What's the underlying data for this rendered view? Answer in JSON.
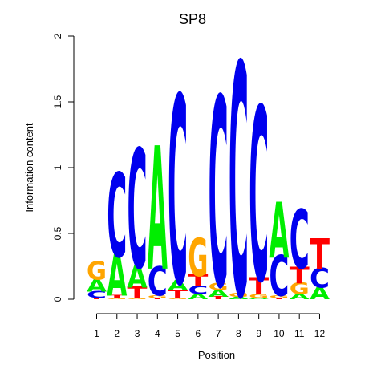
{
  "chart_data": {
    "type": "sequence-logo",
    "title": "SP8",
    "xlabel": "Position",
    "ylabel": "Information content",
    "ylim": [
      0,
      2
    ],
    "yticks": [
      "0",
      "0.5",
      "1",
      "1.5",
      "2"
    ],
    "xticks": [
      "1",
      "2",
      "3",
      "4",
      "5",
      "6",
      "7",
      "8",
      "9",
      "10",
      "11",
      "12"
    ],
    "colors": {
      "A": "#00ee00",
      "C": "#0000ee",
      "G": "#ffa500",
      "T": "#ff0000"
    },
    "positions": [
      {
        "position": "1",
        "stack": [
          [
            "T",
            0.01
          ],
          [
            "C",
            0.05
          ],
          [
            "A",
            0.09
          ],
          [
            "G",
            0.13
          ]
        ]
      },
      {
        "position": "2",
        "stack": [
          [
            "G",
            0.01
          ],
          [
            "T",
            0.02
          ],
          [
            "A",
            0.3
          ],
          [
            "C",
            0.6
          ]
        ]
      },
      {
        "position": "3",
        "stack": [
          [
            "G",
            0.01
          ],
          [
            "T",
            0.08
          ],
          [
            "A",
            0.16
          ],
          [
            "C",
            0.85
          ]
        ]
      },
      {
        "position": "4",
        "stack": [
          [
            "T",
            0.01
          ],
          [
            "G",
            0.02
          ],
          [
            "C",
            0.21
          ],
          [
            "A",
            0.88
          ]
        ]
      },
      {
        "position": "5",
        "stack": [
          [
            "G",
            0.01
          ],
          [
            "T",
            0.06
          ],
          [
            "A",
            0.07
          ],
          [
            "C",
            1.34
          ]
        ]
      },
      {
        "position": "6",
        "stack": [
          [
            "A",
            0.04
          ],
          [
            "C",
            0.06
          ],
          [
            "T",
            0.08
          ],
          [
            "G",
            0.27
          ]
        ]
      },
      {
        "position": "7",
        "stack": [
          [
            "T",
            0.02
          ],
          [
            "A",
            0.05
          ],
          [
            "G",
            0.05
          ],
          [
            "C",
            1.35
          ]
        ]
      },
      {
        "position": "8",
        "stack": [
          [
            "A",
            0.02
          ],
          [
            "G",
            0.03
          ],
          [
            "C",
            1.66
          ]
        ]
      },
      {
        "position": "9",
        "stack": [
          [
            "A",
            0.01
          ],
          [
            "G",
            0.03
          ],
          [
            "T",
            0.12
          ],
          [
            "C",
            1.24
          ]
        ]
      },
      {
        "position": "10",
        "stack": [
          [
            "T",
            0.01
          ],
          [
            "G",
            0.02
          ],
          [
            "C",
            0.29
          ],
          [
            "A",
            0.4
          ]
        ]
      },
      {
        "position": "11",
        "stack": [
          [
            "A",
            0.04
          ],
          [
            "G",
            0.08
          ],
          [
            "T",
            0.12
          ],
          [
            "C",
            0.42
          ]
        ]
      },
      {
        "position": "12",
        "stack": [
          [
            "A",
            0.09
          ],
          [
            "C",
            0.14
          ],
          [
            "T",
            0.22
          ]
        ]
      }
    ]
  }
}
